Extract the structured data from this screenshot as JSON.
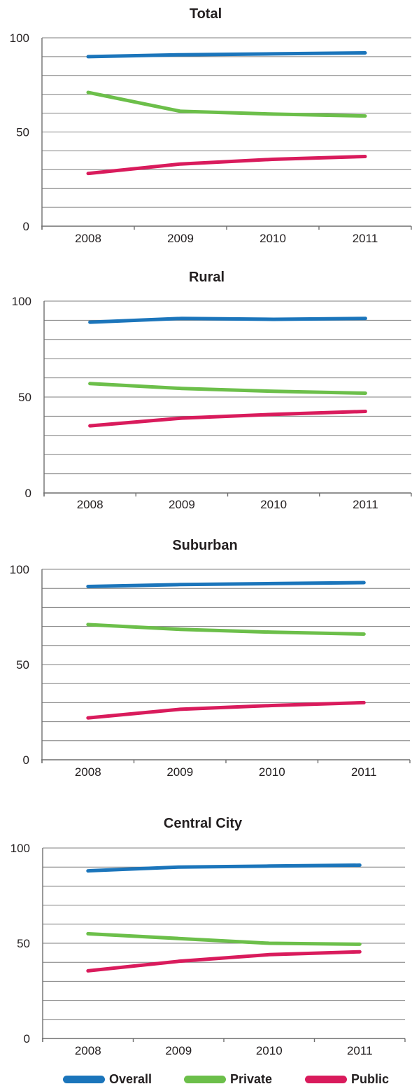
{
  "chart_data": [
    {
      "type": "line",
      "title": "Total",
      "categories": [
        "2008",
        "2009",
        "2010",
        "2011"
      ],
      "ylim": [
        0,
        100
      ],
      "yticks": [
        "0",
        "50",
        "100"
      ],
      "grid": true,
      "series": [
        {
          "name": "Overall",
          "values": [
            90,
            91,
            91.5,
            92
          ]
        },
        {
          "name": "Private",
          "values": [
            71,
            61,
            59.5,
            58.5
          ]
        },
        {
          "name": "Public",
          "values": [
            28,
            33,
            35.5,
            37
          ]
        }
      ]
    },
    {
      "type": "line",
      "title": "Rural",
      "categories": [
        "2008",
        "2009",
        "2010",
        "2011"
      ],
      "ylim": [
        0,
        100
      ],
      "yticks": [
        "0",
        "50",
        "100"
      ],
      "grid": true,
      "series": [
        {
          "name": "Overall",
          "values": [
            89,
            91,
            90.5,
            91
          ]
        },
        {
          "name": "Private",
          "values": [
            57,
            54.5,
            53,
            52
          ]
        },
        {
          "name": "Public",
          "values": [
            35,
            39,
            41,
            42.5
          ]
        }
      ]
    },
    {
      "type": "line",
      "title": "Suburban",
      "categories": [
        "2008",
        "2009",
        "2010",
        "2011"
      ],
      "ylim": [
        0,
        100
      ],
      "yticks": [
        "0",
        "50",
        "100"
      ],
      "grid": true,
      "series": [
        {
          "name": "Overall",
          "values": [
            91,
            92,
            92.5,
            93
          ]
        },
        {
          "name": "Private",
          "values": [
            71,
            68.5,
            67,
            66
          ]
        },
        {
          "name": "Public",
          "values": [
            22,
            26.5,
            28.5,
            30
          ]
        }
      ]
    },
    {
      "type": "line",
      "title": "Central City",
      "categories": [
        "2008",
        "2009",
        "2010",
        "2011"
      ],
      "ylim": [
        0,
        100
      ],
      "yticks": [
        "0",
        "50",
        "100"
      ],
      "grid": true,
      "series": [
        {
          "name": "Overall",
          "values": [
            88,
            90,
            90.5,
            91
          ]
        },
        {
          "name": "Private",
          "values": [
            55,
            52.5,
            50,
            49.5
          ]
        },
        {
          "name": "Public",
          "values": [
            35.5,
            40.5,
            44,
            45.5
          ]
        }
      ]
    }
  ],
  "colors": {
    "Overall": "#1b75bb",
    "Private": "#6cbf4a",
    "Public": "#d91b5c"
  },
  "legend": {
    "position": "bottom",
    "items": [
      {
        "label": "Overall"
      },
      {
        "label": "Private"
      },
      {
        "label": "Public"
      }
    ]
  }
}
